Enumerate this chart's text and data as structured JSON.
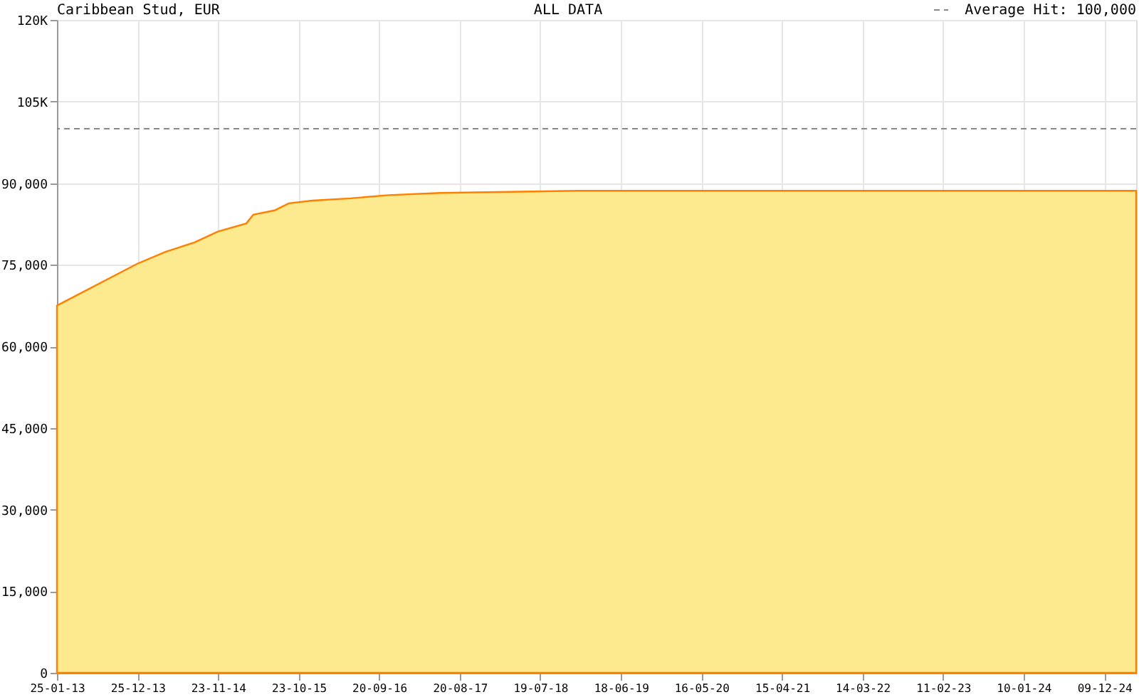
{
  "chart_data": {
    "type": "area",
    "title": "Caribbean Stud, EUR",
    "subtitle": "ALL DATA",
    "x": [
      "2013-01-25",
      "2013-12-24",
      "2014-04-21",
      "2014-08-17",
      "2014-11-22",
      "2015-03-20",
      "2015-04-18",
      "2015-07-15",
      "2015-09-12",
      "2015-12-19",
      "2016-05-24",
      "2016-10-28",
      "2017-06-01",
      "2018-12-21",
      "2025-04-20"
    ],
    "series": [
      {
        "color": "#ff8000",
        "values": [
          67500,
          75200,
          77400,
          79100,
          81100,
          82600,
          84200,
          85000,
          86300,
          86800,
          87200,
          87800,
          88200,
          88600,
          88600
        ]
      }
    ],
    "xlim": [
      "2013-01-25",
      "2025-04-20"
    ],
    "xticks": [
      {
        "value": "2013-01-25",
        "label": "25-01-13"
      },
      {
        "value": "2013-12-25",
        "label": "25-12-13"
      },
      {
        "value": "2014-11-23",
        "label": "23-11-14"
      },
      {
        "value": "2015-10-23",
        "label": "23-10-15"
      },
      {
        "value": "2016-09-20",
        "label": "20-09-16"
      },
      {
        "value": "2017-08-20",
        "label": "20-08-17"
      },
      {
        "value": "2018-07-19",
        "label": "19-07-18"
      },
      {
        "value": "2019-06-18",
        "label": "18-06-19"
      },
      {
        "value": "2020-05-16",
        "label": "16-05-20"
      },
      {
        "value": "2021-04-15",
        "label": "15-04-21"
      },
      {
        "value": "2022-03-14",
        "label": "14-03-22"
      },
      {
        "value": "2023-02-11",
        "label": "11-02-23"
      },
      {
        "value": "2024-01-10",
        "label": "10-01-24"
      },
      {
        "value": "2024-12-09",
        "label": "09-12-24"
      }
    ],
    "ylim": [
      0,
      120000
    ],
    "yticks": [
      0,
      {
        "value": 15000,
        "label": "15,000"
      },
      {
        "value": 30000,
        "label": "30,000"
      },
      {
        "value": 45000,
        "label": "45,000"
      },
      {
        "value": 60000,
        "label": "60,000"
      },
      {
        "value": 75000,
        "label": "75,000"
      },
      {
        "value": 90000,
        "label": "90,000"
      },
      {
        "value": 105000,
        "label": "105K"
      },
      {
        "value": 120000,
        "label": "120K"
      }
    ],
    "ref_lines": [
      {
        "axis": "y",
        "value": 100000,
        "label": "Average Hit: 100,000",
        "color": "#888888",
        "line_style": "dashed"
      }
    ],
    "grid": true
  }
}
